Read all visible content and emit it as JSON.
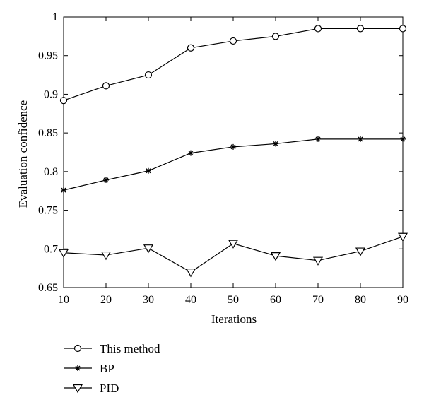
{
  "chart_data": {
    "type": "line",
    "xlabel": "Iterations",
    "ylabel": "Evaluation confidence",
    "xlim": [
      10,
      90
    ],
    "ylim": [
      0.65,
      1.0
    ],
    "x_ticks": [
      "10",
      "20",
      "30",
      "40",
      "50",
      "60",
      "70",
      "80",
      "90"
    ],
    "y_ticks": [
      "0.65",
      "0.7",
      "0.75",
      "0.8",
      "0.85",
      "0.9",
      "0.95",
      "1"
    ],
    "x": [
      10,
      20,
      30,
      40,
      50,
      60,
      70,
      80,
      90
    ],
    "grid": false,
    "legend_position": "below",
    "series": [
      {
        "name": "This method",
        "marker": "circle",
        "values": [
          0.892,
          0.911,
          0.925,
          0.96,
          0.969,
          0.975,
          0.985,
          0.985,
          0.985
        ]
      },
      {
        "name": "BP",
        "marker": "asterisk",
        "values": [
          0.776,
          0.789,
          0.801,
          0.824,
          0.832,
          0.836,
          0.842,
          0.842,
          0.842
        ]
      },
      {
        "name": "PID",
        "marker": "triangle-down",
        "values": [
          0.695,
          0.692,
          0.701,
          0.67,
          0.707,
          0.691,
          0.685,
          0.697,
          0.716
        ]
      }
    ],
    "colors": {
      "line": "#000000",
      "marker_fill": "#ffffff"
    }
  }
}
